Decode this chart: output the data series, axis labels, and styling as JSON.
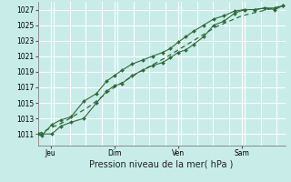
{
  "xlabel": "Pression niveau de la mer( hPa )",
  "bg_color": "#c8ede8",
  "grid_color": "#ffffff",
  "line_color": "#2d6b3a",
  "ylim": [
    1009.5,
    1028.0
  ],
  "yticks": [
    1011,
    1013,
    1015,
    1017,
    1019,
    1021,
    1023,
    1025,
    1027
  ],
  "day_labels": [
    "Jeu",
    "Dim",
    "Ven",
    "Sam"
  ],
  "day_positions": [
    0.5,
    3.0,
    5.5,
    8.0
  ],
  "xlim": [
    0,
    9.7
  ],
  "vlines": [
    0.5,
    3.0,
    5.5,
    8.0
  ],
  "line1_x": [
    0.0,
    0.15,
    0.55,
    0.9,
    1.3,
    1.8,
    2.3,
    2.7,
    3.0,
    3.3,
    3.7,
    4.1,
    4.5,
    4.9,
    5.2,
    5.5,
    5.8,
    6.1,
    6.5,
    6.9,
    7.3,
    7.7,
    8.1,
    8.5,
    8.9,
    9.3,
    9.6
  ],
  "line1_y": [
    1011.0,
    1011.0,
    1011.0,
    1012.0,
    1012.5,
    1013.0,
    1015.0,
    1016.5,
    1017.2,
    1017.5,
    1018.5,
    1019.2,
    1019.8,
    1020.2,
    1020.8,
    1021.5,
    1021.8,
    1022.5,
    1023.5,
    1025.0,
    1025.5,
    1026.5,
    1027.0,
    1027.0,
    1027.2,
    1027.0,
    1027.5
  ],
  "line2_x": [
    0.0,
    0.15,
    0.55,
    0.9,
    1.3,
    1.8,
    2.3,
    2.7,
    3.0,
    3.3,
    3.7,
    4.1,
    4.5,
    4.9,
    5.2,
    5.5,
    5.8,
    6.1,
    6.5,
    6.9,
    7.3,
    7.7,
    8.1,
    8.5,
    8.9,
    9.3,
    9.6
  ],
  "line2_y": [
    1011.0,
    1010.8,
    1012.2,
    1012.8,
    1013.2,
    1015.2,
    1016.2,
    1017.8,
    1018.5,
    1019.2,
    1020.0,
    1020.5,
    1021.0,
    1021.5,
    1022.0,
    1022.8,
    1023.5,
    1024.2,
    1025.0,
    1025.8,
    1026.2,
    1026.8,
    1027.0,
    1027.0,
    1027.2,
    1027.2,
    1027.5
  ],
  "line3_x": [
    0.0,
    1.0,
    2.0,
    3.0,
    4.0,
    5.0,
    6.0,
    7.0,
    8.0,
    9.0,
    9.6
  ],
  "line3_y": [
    1011.0,
    1012.5,
    1014.5,
    1017.0,
    1019.0,
    1020.8,
    1022.8,
    1024.8,
    1026.2,
    1027.0,
    1027.5
  ]
}
